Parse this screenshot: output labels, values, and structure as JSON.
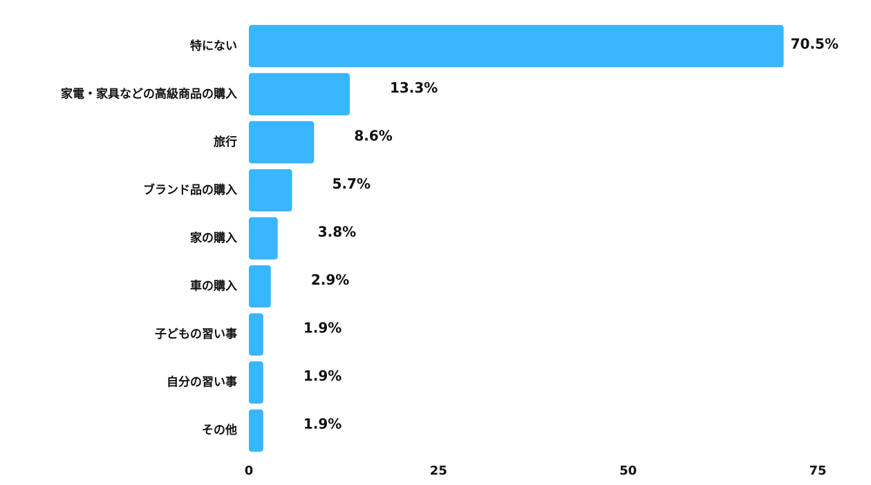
{
  "chart_data": {
    "type": "hbar",
    "categories": [
      "特にない",
      "家電・家具などの高級商品の購入",
      "旅行",
      "ブランド品の購入",
      "家の購入",
      "車の購入",
      "子どもの習い事",
      "自分の習い事",
      "その他"
    ],
    "values": [
      70.5,
      13.3,
      8.6,
      5.7,
      3.8,
      2.9,
      1.9,
      1.9,
      1.9
    ],
    "value_labels": [
      "70.5%",
      "13.3%",
      "8.6%",
      "5.7%",
      "3.8%",
      "2.9%",
      "1.9%",
      "1.9%",
      "1.9%"
    ],
    "color": "#38b6ff",
    "xlim": [
      0,
      75
    ],
    "xticks": [
      0,
      25,
      50,
      75
    ],
    "grid": false
  }
}
